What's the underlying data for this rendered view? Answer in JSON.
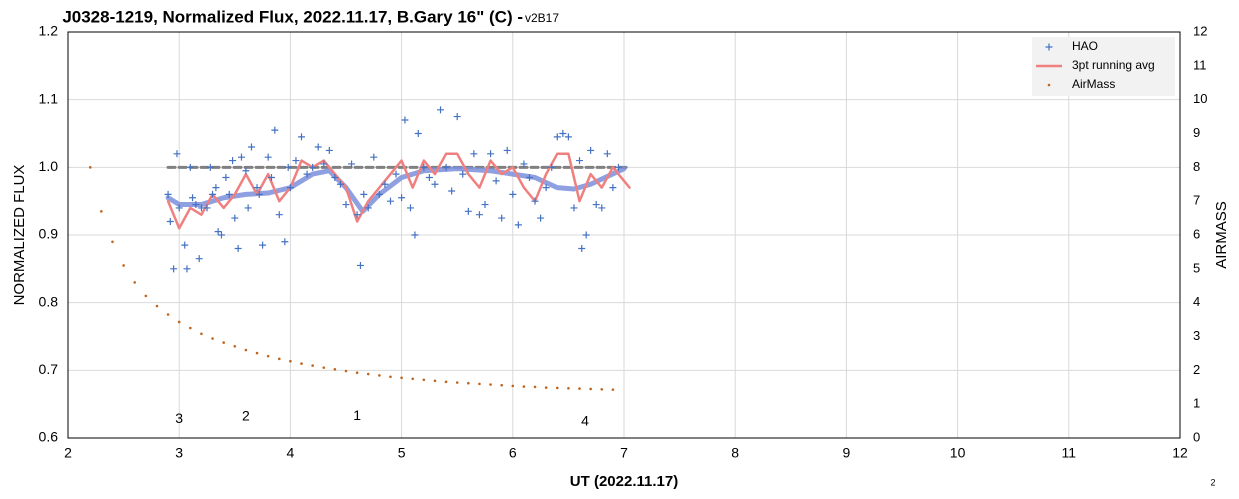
{
  "chart_data": {
    "type": "scatter",
    "title": "J0328-1219, Normalized Flux, 2022.11.17, B.Gary 16\" (C) - ",
    "subtitle": "v2B17",
    "x_label": "UT (2022.11.17)",
    "y_label": "NORMALIZED FLUX",
    "y2_label": "AIRMASS",
    "xlim": [
      2,
      12
    ],
    "xticks": [
      2,
      3,
      4,
      5,
      6,
      7,
      8,
      9,
      10,
      11,
      12
    ],
    "ylim": [
      0.6,
      1.2
    ],
    "yticks": [
      0.6,
      0.7,
      0.8,
      0.9,
      {
        "value": 1,
        "label": "1.0"
      },
      1.1,
      1.2
    ],
    "y2lim": [
      0,
      12
    ],
    "y2ticks": [
      0,
      1,
      2,
      3,
      4,
      5,
      6,
      7,
      8,
      9,
      10,
      11,
      12
    ],
    "grid": true,
    "legend": "top-right",
    "series": [
      {
        "name": "HAO",
        "color": "#4472c4",
        "marker": "plus",
        "x": [
          2.9,
          2.92,
          2.95,
          2.98,
          3.0,
          3.05,
          3.07,
          3.1,
          3.12,
          3.15,
          3.18,
          3.2,
          3.25,
          3.28,
          3.3,
          3.33,
          3.35,
          3.38,
          3.42,
          3.45,
          3.48,
          3.5,
          3.53,
          3.56,
          3.6,
          3.62,
          3.65,
          3.7,
          3.72,
          3.75,
          3.8,
          3.83,
          3.86,
          3.9,
          3.95,
          3.98,
          4.0,
          4.05,
          4.1,
          4.15,
          4.2,
          4.25,
          4.3,
          4.35,
          4.4,
          4.45,
          4.5,
          4.55,
          4.6,
          4.63,
          4.66,
          4.7,
          4.75,
          4.8,
          4.85,
          4.9,
          4.95,
          5.0,
          5.03,
          5.08,
          5.12,
          5.15,
          5.2,
          5.25,
          5.3,
          5.35,
          5.4,
          5.45,
          5.5,
          5.55,
          5.6,
          5.65,
          5.7,
          5.75,
          5.8,
          5.85,
          5.9,
          5.95,
          6.0,
          6.05,
          6.1,
          6.15,
          6.2,
          6.25,
          6.3,
          6.35,
          6.4,
          6.45,
          6.5,
          6.55,
          6.6,
          6.62,
          6.66,
          6.7,
          6.75,
          6.8,
          6.85,
          6.9,
          6.95
        ],
        "values": [
          0.96,
          0.92,
          0.85,
          1.02,
          0.94,
          0.885,
          0.85,
          1.0,
          0.955,
          0.945,
          0.865,
          0.94,
          0.94,
          1.0,
          0.96,
          0.97,
          0.905,
          0.9,
          0.985,
          0.96,
          1.01,
          0.925,
          0.88,
          1.015,
          0.995,
          0.94,
          1.03,
          0.97,
          0.96,
          0.885,
          1.015,
          0.985,
          1.055,
          0.93,
          0.89,
          1.0,
          0.97,
          1.01,
          1.045,
          0.99,
          1.0,
          1.03,
          1.005,
          1.025,
          0.985,
          0.975,
          0.945,
          1.005,
          0.93,
          0.855,
          0.96,
          0.94,
          1.015,
          0.96,
          0.975,
          0.95,
          0.99,
          0.955,
          1.07,
          0.94,
          0.9,
          1.05,
          1.0,
          0.985,
          0.975,
          1.085,
          1.0,
          0.965,
          1.075,
          0.99,
          0.935,
          1.02,
          0.93,
          0.945,
          1.02,
          0.98,
          0.925,
          1.025,
          0.96,
          0.915,
          1.005,
          0.985,
          0.95,
          0.925,
          0.97,
          1.0,
          1.045,
          1.05,
          1.045,
          0.94,
          1.01,
          0.88,
          0.9,
          1.025,
          0.945,
          0.94,
          1.02,
          0.97,
          1.0
        ]
      },
      {
        "name": "3pt running avg",
        "color": "#f08080",
        "marker": "line",
        "x": [
          2.9,
          3.0,
          3.1,
          3.2,
          3.3,
          3.4,
          3.5,
          3.6,
          3.7,
          3.8,
          3.9,
          4.0,
          4.1,
          4.2,
          4.3,
          4.4,
          4.5,
          4.6,
          4.7,
          4.8,
          4.9,
          5.0,
          5.1,
          5.2,
          5.3,
          5.4,
          5.5,
          5.6,
          5.7,
          5.8,
          5.9,
          6.0,
          6.1,
          6.2,
          6.3,
          6.4,
          6.5,
          6.6,
          6.7,
          6.8,
          6.9,
          7.05
        ],
        "values": [
          0.95,
          0.91,
          0.94,
          0.93,
          0.96,
          0.94,
          0.96,
          0.99,
          0.96,
          0.99,
          0.95,
          0.97,
          1.01,
          1.0,
          1.01,
          0.99,
          0.97,
          0.92,
          0.95,
          0.97,
          0.99,
          1.01,
          0.97,
          1.01,
          0.99,
          1.02,
          1.02,
          0.99,
          0.97,
          1.01,
          0.99,
          1.0,
          0.97,
          0.95,
          0.99,
          1.02,
          1.02,
          0.95,
          0.99,
          0.97,
          1.0,
          0.97
        ]
      },
      {
        "name": "AirMass",
        "color": "#c0651e",
        "marker": "dot",
        "axis": "y2",
        "x": [
          2.2,
          2.3,
          2.4,
          2.5,
          2.6,
          2.7,
          2.8,
          2.9,
          3.0,
          3.1,
          3.2,
          3.3,
          3.4,
          3.5,
          3.6,
          3.7,
          3.8,
          3.9,
          4.0,
          4.1,
          4.2,
          4.3,
          4.4,
          4.5,
          4.6,
          4.7,
          4.8,
          4.9,
          5.0,
          5.1,
          5.2,
          5.3,
          5.4,
          5.5,
          5.6,
          5.7,
          5.8,
          5.9,
          6.0,
          6.1,
          6.2,
          6.3,
          6.4,
          6.5,
          6.6,
          6.7,
          6.8,
          6.9
        ],
        "values": [
          8.0,
          6.7,
          5.8,
          5.1,
          4.6,
          4.2,
          3.9,
          3.65,
          3.43,
          3.25,
          3.08,
          2.94,
          2.82,
          2.71,
          2.6,
          2.51,
          2.42,
          2.34,
          2.27,
          2.2,
          2.14,
          2.08,
          2.03,
          1.98,
          1.93,
          1.89,
          1.85,
          1.81,
          1.78,
          1.75,
          1.72,
          1.69,
          1.66,
          1.64,
          1.62,
          1.6,
          1.58,
          1.56,
          1.54,
          1.52,
          1.51,
          1.49,
          1.48,
          1.47,
          1.46,
          1.45,
          1.44,
          1.43
        ]
      },
      {
        "color": "#7b8fdc",
        "marker": "thick-line",
        "x": [
          2.9,
          3.0,
          3.2,
          3.4,
          3.6,
          3.8,
          4.0,
          4.2,
          4.35,
          4.5,
          4.65,
          4.8,
          5.0,
          5.2,
          5.5,
          5.8,
          6.0,
          6.2,
          6.4,
          6.55,
          6.7,
          7.0
        ],
        "values": [
          0.955,
          0.945,
          0.945,
          0.955,
          0.96,
          0.962,
          0.97,
          0.99,
          0.995,
          0.97,
          0.935,
          0.96,
          0.985,
          0.995,
          0.998,
          0.995,
          0.99,
          0.985,
          0.97,
          0.968,
          0.975,
          0.998
        ]
      },
      {
        "color": "#808080",
        "marker": "dashed-line",
        "x": [
          2.9,
          7.05
        ],
        "values": [
          1.0,
          1.0
        ]
      }
    ],
    "annotations": [
      {
        "text": "3",
        "x": 3.0,
        "y": 0.628
      },
      {
        "text": "2",
        "x": 3.6,
        "y": 0.631
      },
      {
        "text": "1",
        "x": 4.6,
        "y": 0.632
      },
      {
        "text": "4",
        "x": 6.65,
        "y": 0.624
      }
    ]
  },
  "page_number": "2"
}
